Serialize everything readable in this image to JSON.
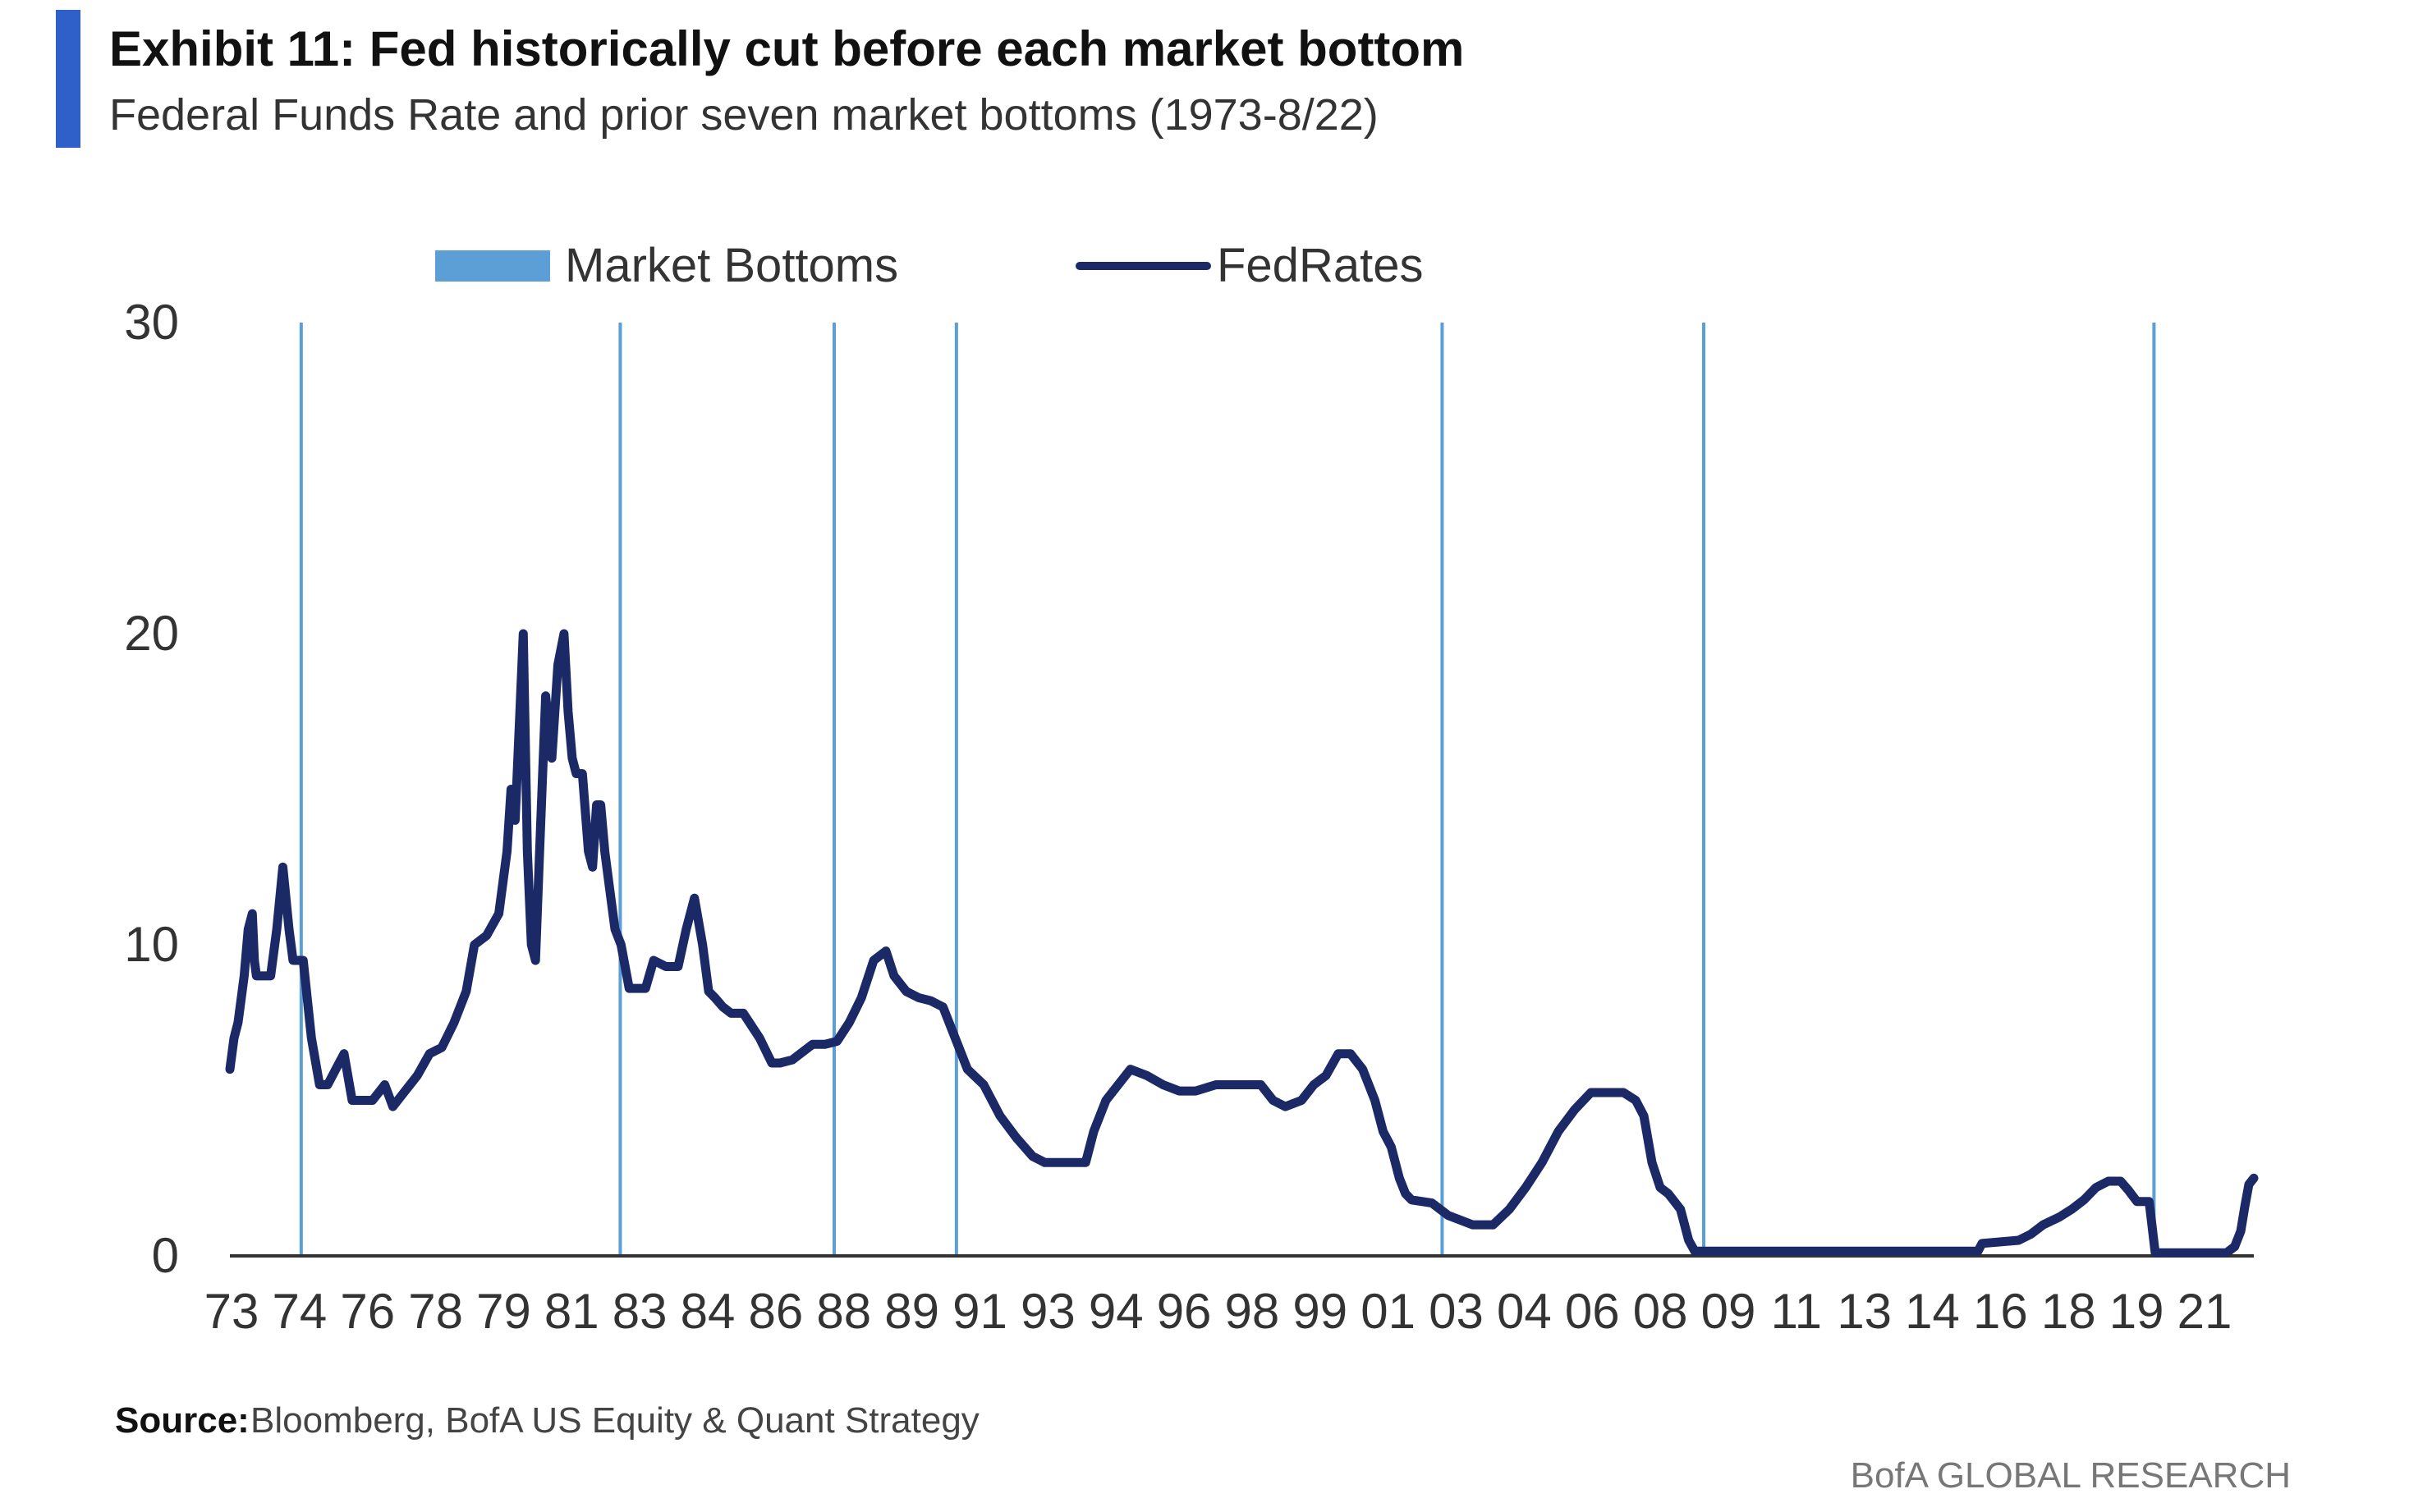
{
  "colors": {
    "accent_bar": "#2f5fc8",
    "market_bottoms": "#5b9fd6",
    "fed_rates": "#1b2a66",
    "axis": "#333333",
    "text": "#222222"
  },
  "source": {
    "label": "Source:",
    "text": "Bloomberg, BofA US Equity & Quant Strategy"
  },
  "brand": "BofA GLOBAL RESEARCH",
  "chart_data": {
    "type": "line",
    "title": "Exhibit 11: Fed historically cut before each market bottom",
    "subtitle": "Federal Funds Rate and prior seven market bottoms (1973-8/22)",
    "xlabel": "",
    "ylabel": "",
    "xlim": [
      1973.0,
      2022.67
    ],
    "ylim": [
      0,
      30
    ],
    "y_ticks": [
      0,
      10,
      20,
      30
    ],
    "x_tick_labels": [
      "73",
      "74",
      "76",
      "78",
      "79",
      "81",
      "83",
      "84",
      "86",
      "88",
      "89",
      "91",
      "93",
      "94",
      "96",
      "98",
      "99",
      "01",
      "03",
      "04",
      "06",
      "08",
      "09",
      "11",
      "13",
      "14",
      "16",
      "18",
      "19",
      "21"
    ],
    "grid": false,
    "legend_position": "top",
    "legend": [
      "Market Bottoms",
      "FedRates"
    ],
    "market_bottoms": [
      1974.75,
      1982.58,
      1987.83,
      1990.83,
      2002.75,
      2009.17,
      2020.22
    ],
    "series": [
      {
        "name": "FedRates",
        "x": [
          1973.0,
          1973.1,
          1973.2,
          1973.35,
          1973.45,
          1973.55,
          1973.6,
          1973.65,
          1973.75,
          1973.9,
          1974.0,
          1974.15,
          1974.3,
          1974.45,
          1974.55,
          1974.7,
          1974.8,
          1975.0,
          1975.2,
          1975.4,
          1975.6,
          1975.8,
          1976.0,
          1976.2,
          1976.5,
          1976.8,
          1977.0,
          1977.3,
          1977.6,
          1977.9,
          1978.2,
          1978.5,
          1978.8,
          1979.0,
          1979.3,
          1979.6,
          1979.8,
          1979.9,
          1980.0,
          1980.1,
          1980.2,
          1980.3,
          1980.4,
          1980.5,
          1980.6,
          1980.75,
          1980.9,
          1981.05,
          1981.2,
          1981.3,
          1981.4,
          1981.5,
          1981.65,
          1981.8,
          1981.9,
          1982.0,
          1982.1,
          1982.2,
          1982.3,
          1982.45,
          1982.6,
          1982.8,
          1983.2,
          1983.4,
          1983.7,
          1984.0,
          1984.2,
          1984.4,
          1984.6,
          1984.75,
          1984.9,
          1985.1,
          1985.3,
          1985.6,
          1986.0,
          1986.3,
          1986.5,
          1986.8,
          1987.1,
          1987.3,
          1987.6,
          1987.9,
          1988.2,
          1988.5,
          1988.8,
          1989.1,
          1989.3,
          1989.6,
          1989.9,
          1990.2,
          1990.5,
          1990.8,
          1991.1,
          1991.5,
          1991.9,
          1992.3,
          1992.7,
          1993.0,
          1993.5,
          1994.0,
          1994.2,
          1994.5,
          1994.8,
          1995.1,
          1995.5,
          1995.9,
          1996.3,
          1996.7,
          1997.2,
          1997.7,
          1998.3,
          1998.6,
          1998.9,
          1999.3,
          1999.6,
          1999.9,
          2000.2,
          2000.5,
          2000.8,
          2001.1,
          2001.3,
          2001.5,
          2001.7,
          2001.85,
          2002.0,
          2002.5,
          2002.9,
          2003.5,
          2004.0,
          2004.4,
          2004.8,
          2005.2,
          2005.6,
          2006.0,
          2006.4,
          2006.8,
          2007.2,
          2007.5,
          2007.7,
          2007.9,
          2008.1,
          2008.3,
          2008.6,
          2008.8,
          2008.95,
          2009.0,
          2010.0,
          2011.0,
          2012.0,
          2013.0,
          2014.0,
          2015.0,
          2015.9,
          2016.0,
          2016.9,
          2017.2,
          2017.5,
          2017.9,
          2018.2,
          2018.5,
          2018.8,
          2019.1,
          2019.4,
          2019.6,
          2019.8,
          2020.1,
          2020.25,
          2021.0,
          2022.0,
          2022.2,
          2022.35,
          2022.45,
          2022.55,
          2022.67
        ],
        "values": [
          6.0,
          7.0,
          7.5,
          9.0,
          10.5,
          11.0,
          9.5,
          9.0,
          9.0,
          9.0,
          9.0,
          10.5,
          12.5,
          10.5,
          9.5,
          9.5,
          9.5,
          7.0,
          5.5,
          5.5,
          6.0,
          6.5,
          5.0,
          5.0,
          5.0,
          5.5,
          4.8,
          5.3,
          5.8,
          6.5,
          6.7,
          7.5,
          8.5,
          10.0,
          10.3,
          11.0,
          13.0,
          15.0,
          14.0,
          17.0,
          20.0,
          13.0,
          10.0,
          9.5,
          13.0,
          18.0,
          16.0,
          19.0,
          20.0,
          17.5,
          16.0,
          15.5,
          15.5,
          13.0,
          12.5,
          14.5,
          14.5,
          13.0,
          12.0,
          10.5,
          10.0,
          8.6,
          8.6,
          9.5,
          9.3,
          9.3,
          10.5,
          11.5,
          10.0,
          8.5,
          8.3,
          8.0,
          7.8,
          7.8,
          7.0,
          6.2,
          6.2,
          6.3,
          6.6,
          6.8,
          6.8,
          6.9,
          7.5,
          8.3,
          9.5,
          9.8,
          9.0,
          8.5,
          8.3,
          8.2,
          8.0,
          7.0,
          6.0,
          5.5,
          4.5,
          3.8,
          3.2,
          3.0,
          3.0,
          3.0,
          4.0,
          5.0,
          5.5,
          6.0,
          5.8,
          5.5,
          5.3,
          5.3,
          5.5,
          5.5,
          5.5,
          5.0,
          4.8,
          5.0,
          5.5,
          5.8,
          6.5,
          6.5,
          6.0,
          5.0,
          4.0,
          3.5,
          2.5,
          2.0,
          1.8,
          1.7,
          1.3,
          1.0,
          1.0,
          1.5,
          2.2,
          3.0,
          4.0,
          4.7,
          5.25,
          5.25,
          5.25,
          5.0,
          4.5,
          3.0,
          2.2,
          2.0,
          1.5,
          0.5,
          0.15,
          0.15,
          0.15,
          0.15,
          0.15,
          0.15,
          0.15,
          0.15,
          0.15,
          0.4,
          0.5,
          0.7,
          1.0,
          1.25,
          1.5,
          1.8,
          2.2,
          2.4,
          2.4,
          2.1,
          1.75,
          1.75,
          0.1,
          0.1,
          0.1,
          0.3,
          0.8,
          1.6,
          2.3,
          2.5
        ]
      }
    ]
  }
}
